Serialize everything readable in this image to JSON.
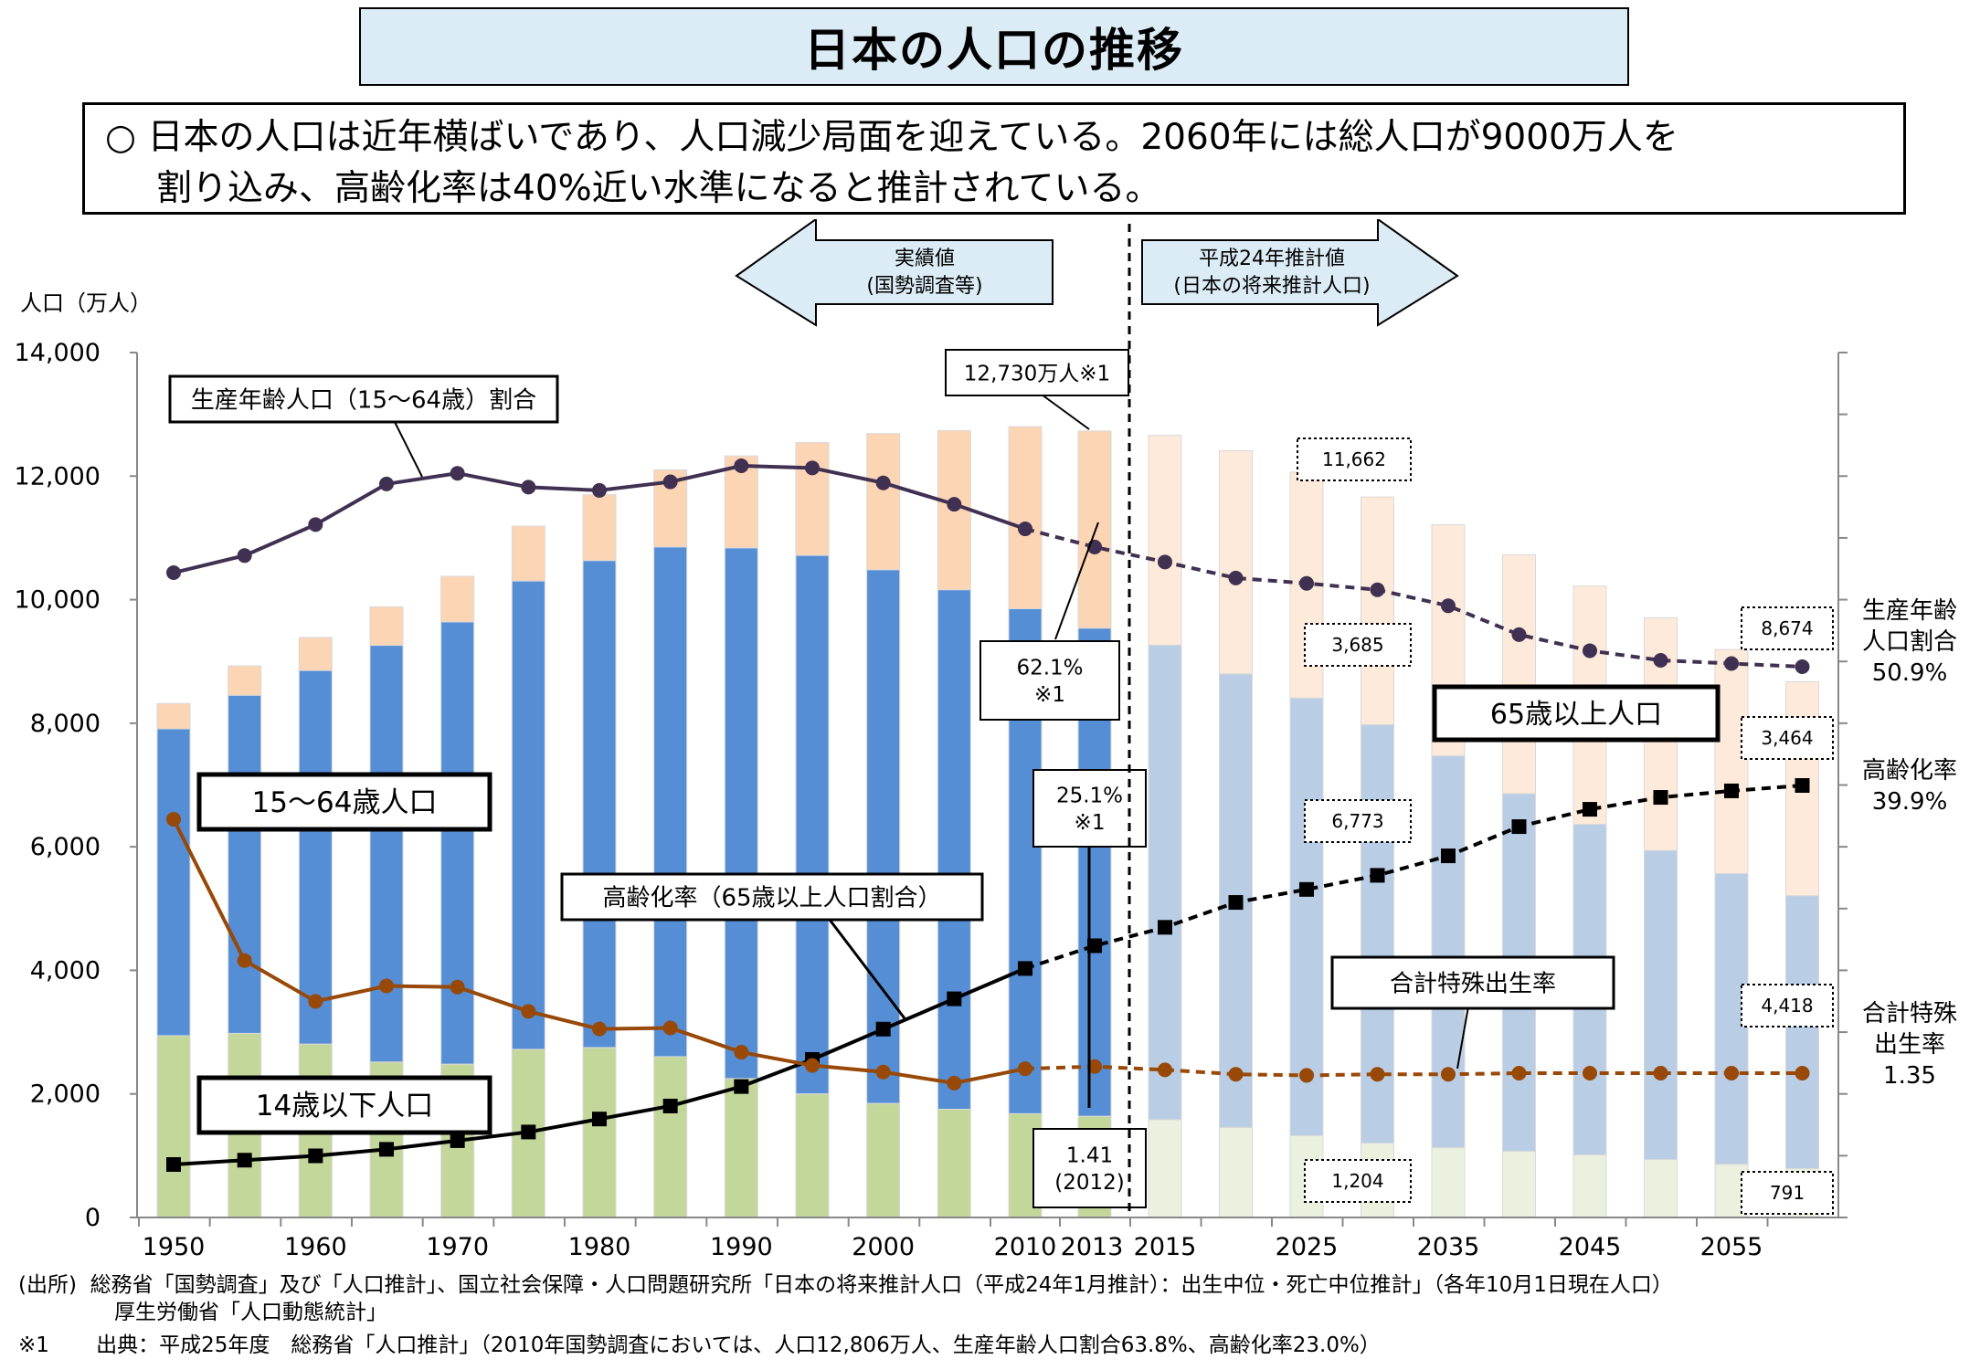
{
  "title": "日本の人口の推移",
  "summary": {
    "bullet": "○",
    "line1": "日本の人口は近年横ばいであり、人口減少局面を迎えている。2060年には総人口が9000万人を",
    "line2": "割り込み、高齢化率は40%近い水準になると推計されている。"
  },
  "footnotes": {
    "source_label": "(出所)",
    "source_line1": "総務省「国勢調査」及び「人口推計」、国立社会保障・人口問題研究所「日本の将来推計人口（平成24年1月推計）：出生中位・死亡中位推計」（各年10月1日現在人口）",
    "source_line2": "厚生労働省「人口動態統計」",
    "note_label": "※1",
    "note_text": "出典：平成25年度　総務省「人口推計」（2010年国勢調査においては、人口12,806万人、生産年齢人口割合63.8%、高齢化率23.0%）"
  },
  "chart_data": {
    "type": "bar",
    "ylabel": "人口（万人）",
    "ylim": [
      0,
      14000
    ],
    "yticks": [
      "0",
      "2,000",
      "4,000",
      "6,000",
      "8,000",
      "10,000",
      "12,000",
      "14,000"
    ],
    "x": [
      1950,
      1955,
      1960,
      1965,
      1970,
      1975,
      1980,
      1985,
      1990,
      1995,
      2000,
      2005,
      2010,
      2013,
      2015,
      2020,
      2025,
      2030,
      2035,
      2040,
      2045,
      2050,
      2055,
      2060
    ],
    "xticks": [
      "1950",
      "1960",
      "1970",
      "1980",
      "1990",
      "2000",
      "2010",
      "2013",
      "2015",
      "2025",
      "2035",
      "2045",
      "2055"
    ],
    "projected_from": "2015",
    "stacked_series": [
      {
        "key": "child",
        "name": "14歳以下人口",
        "values": [
          2943,
          2980,
          2807,
          2517,
          2482,
          2722,
          2751,
          2603,
          2249,
          2001,
          1847,
          1752,
          1680,
          1639,
          1583,
          1457,
          1324,
          1204,
          1129,
          1073,
          1012,
          939,
          861,
          791
        ]
      },
      {
        "key": "working",
        "name": "15〜64歳人口",
        "values": [
          4966,
          5473,
          6047,
          6744,
          7157,
          7581,
          7883,
          8251,
          8590,
          8716,
          8638,
          8409,
          8173,
          7901,
          7682,
          7341,
          7084,
          6773,
          6343,
          5787,
          5353,
          5001,
          4706,
          4418
        ]
      },
      {
        "key": "elderly",
        "name": "65歳以上人口",
        "values": [
          411,
          475,
          535,
          624,
          739,
          887,
          1065,
          1247,
          1489,
          1826,
          2204,
          2576,
          2948,
          3190,
          3395,
          3612,
          3657,
          3685,
          3741,
          3868,
          3856,
          3768,
          3626,
          3464
        ]
      }
    ],
    "line_series": [
      {
        "key": "working_ratio",
        "name": "生産年齢人口（15〜64歳）割合",
        "unit": "%",
        "values": [
          59.7,
          61.3,
          64.2,
          68.0,
          69.0,
          67.7,
          67.4,
          68.2,
          69.7,
          69.5,
          68.1,
          66.1,
          63.8,
          62.1,
          60.7,
          59.2,
          58.7,
          58.1,
          56.6,
          53.9,
          52.4,
          51.5,
          51.2,
          50.9
        ]
      },
      {
        "key": "aging_rate",
        "name": "高齢化率（65歳以上人口割合）",
        "unit": "%",
        "values": [
          4.9,
          5.3,
          5.7,
          6.3,
          7.1,
          7.9,
          9.1,
          10.3,
          12.1,
          14.6,
          17.4,
          20.2,
          23.0,
          25.1,
          26.8,
          29.1,
          30.3,
          31.6,
          33.4,
          36.1,
          37.7,
          38.8,
          39.4,
          39.9
        ]
      },
      {
        "key": "fertility",
        "name": "合計特殊出生率",
        "values": [
          3.65,
          2.37,
          2.0,
          2.14,
          2.13,
          1.91,
          1.75,
          1.76,
          1.54,
          1.42,
          1.36,
          1.26,
          1.39,
          1.41,
          1.38,
          1.34,
          1.33,
          1.34,
          1.34,
          1.35,
          1.35,
          1.35,
          1.35,
          1.35
        ]
      }
    ],
    "series_labels": {
      "working_ratio": "生産年齢人口（15～64歳）割合",
      "working": "15～64歳人口",
      "aging_rate": "高齢化率（65歳以上人口割合）",
      "child": "14歳以下人口",
      "elderly": "65歳以上人口",
      "fertility": "合計特殊出生率"
    },
    "period_labels": {
      "actual_line1": "実績値",
      "actual_line2": "(国勢調査等)",
      "projected_line1": "平成24年推計値",
      "projected_line2": "(日本の将来推計人口)"
    },
    "annotations": {
      "total_2013": "12,730万人※1",
      "working_ratio_2013": "62.1%",
      "working_ratio_2013_note": "※1",
      "aging_2013": "25.1%",
      "aging_2013_note": "※1",
      "fertility_2012_value": "1.41",
      "fertility_2012_year": "(2012)",
      "total_2030": "11,662",
      "elderly_2030": "3,685",
      "working_2030": "6,773",
      "child_2030": "1,204",
      "total_2060": "8,674",
      "elderly_2060": "3,464",
      "working_2060": "4,418",
      "child_2060": "791"
    },
    "right_labels": {
      "working_ratio_l1": "生産年齢",
      "working_ratio_l2": "人口割合",
      "working_ratio_value": "50.9%",
      "aging_l1": "高齢化率",
      "aging_value": "39.9%",
      "fertility_l1": "合計特殊",
      "fertility_l2": "出生率",
      "fertility_value": "1.35"
    },
    "colors": {
      "child": "#c4d79b",
      "working": "#558ed5",
      "elderly": "#fcd5b5",
      "child_proj": "#ebf1de",
      "working_proj": "#b9cde5",
      "elderly_proj": "#fdeada",
      "working_ratio_line": "#403152",
      "aging_line": "#000000",
      "fertility_line": "#984807",
      "arrow_fill": "#dcecf6"
    }
  }
}
